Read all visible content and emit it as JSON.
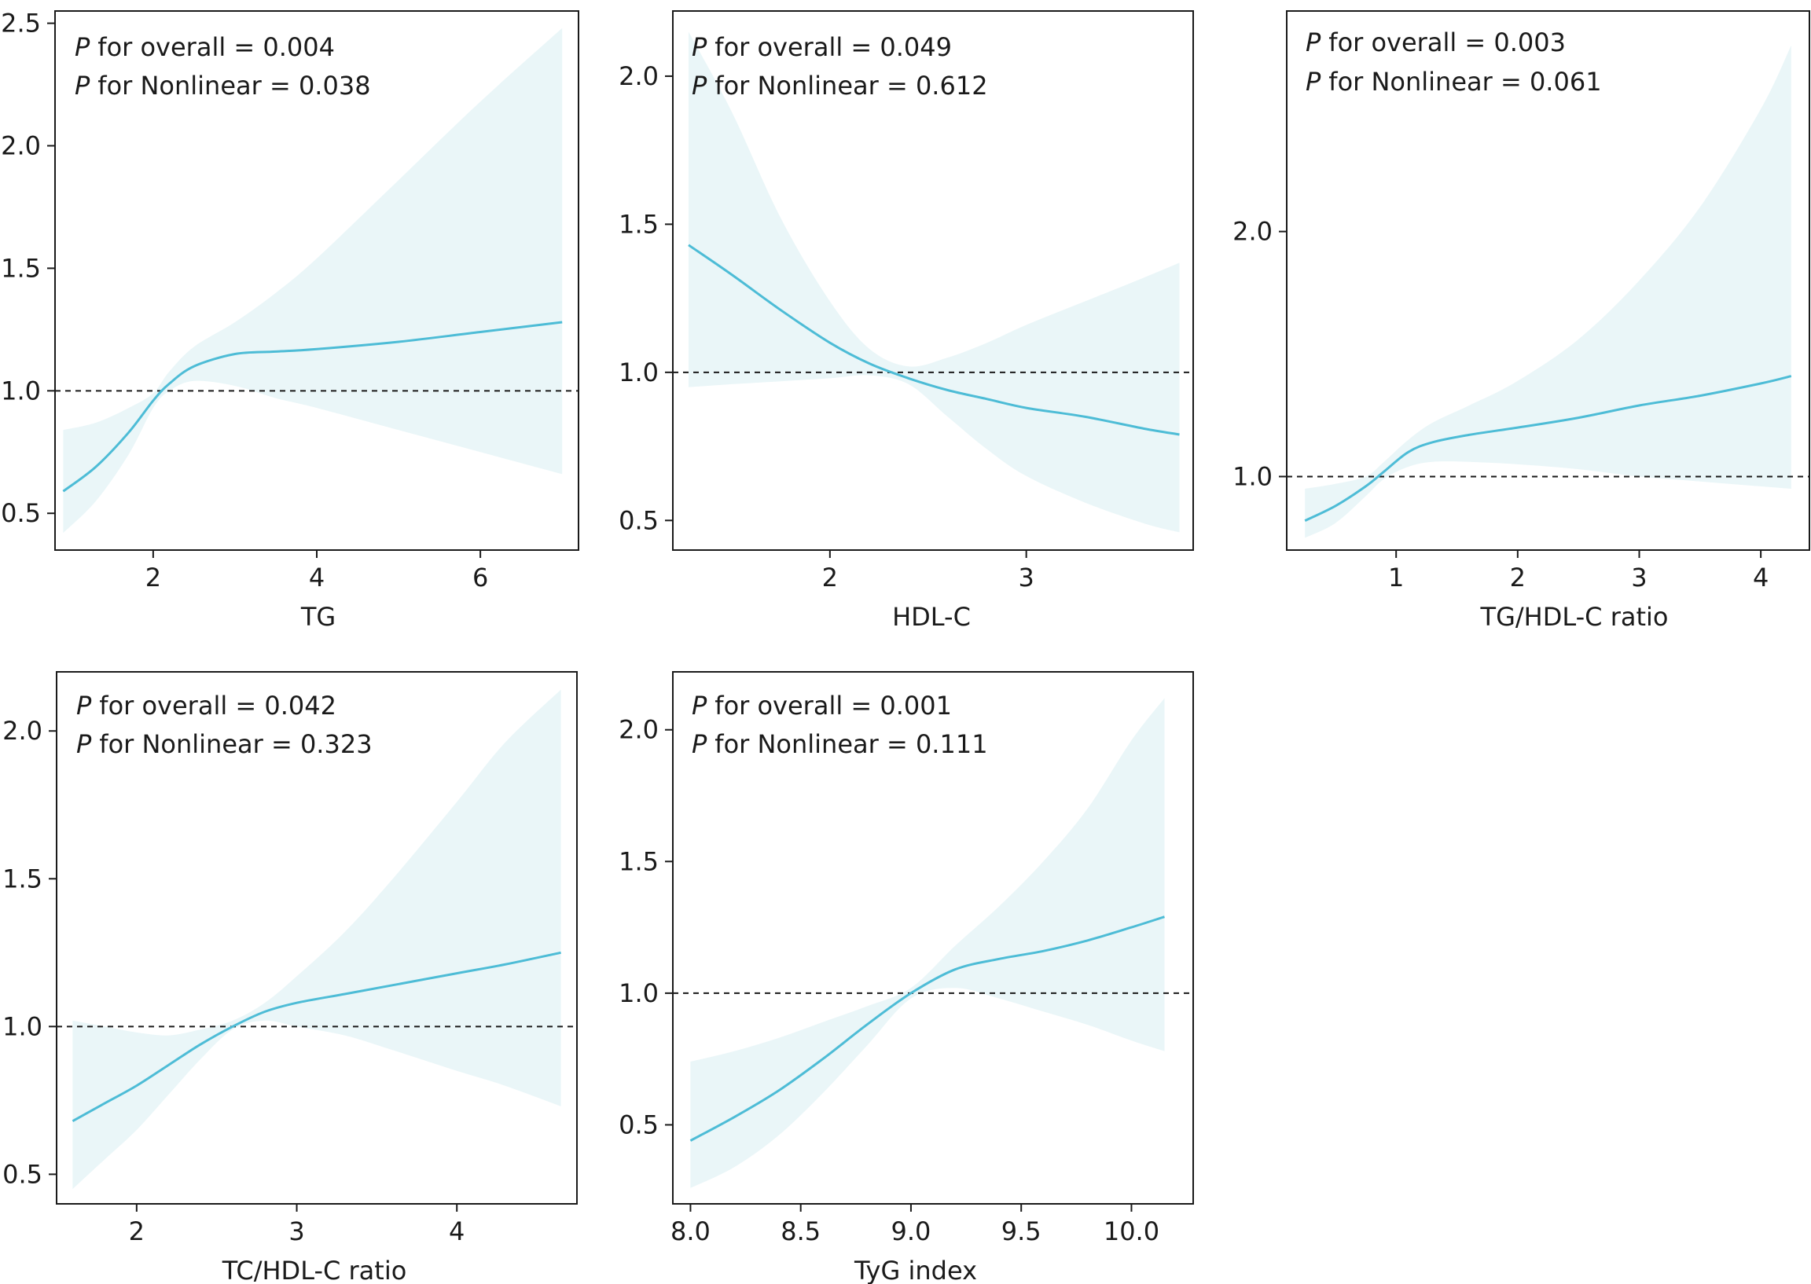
{
  "colors": {
    "line": "#4dbcd6",
    "band": "#eaf6f8",
    "axis": "#1a1a1a",
    "reference": "#1a1a1a"
  },
  "chart_data": [
    {
      "type": "line",
      "xlabel": "TG",
      "ylabel": "",
      "xlim": [
        0.8,
        7.2
      ],
      "ylim": [
        0.35,
        2.55
      ],
      "xticks": [
        2,
        4,
        6
      ],
      "xtick_labels": [
        "2",
        "4",
        "6"
      ],
      "yticks": [
        0.5,
        1.0,
        1.5,
        2.0,
        2.5
      ],
      "ytick_labels": [
        "0.5",
        "1.0",
        "1.5",
        "2.0",
        "2.5"
      ],
      "reference_y": 1.0,
      "annotations": [
        {
          "italic": "P",
          "text": "for overall = 0.004"
        },
        {
          "italic": "P",
          "text": "for Nonlinear = 0.038"
        }
      ],
      "x": [
        0.9,
        1.3,
        1.7,
        2.0,
        2.2,
        2.5,
        3.0,
        3.5,
        4.0,
        5.0,
        6.0,
        7.0
      ],
      "y": [
        0.59,
        0.69,
        0.83,
        0.96,
        1.03,
        1.1,
        1.15,
        1.16,
        1.17,
        1.2,
        1.24,
        1.28
      ],
      "lower": [
        0.42,
        0.55,
        0.74,
        0.93,
        1.0,
        1.04,
        1.02,
        0.97,
        0.93,
        0.84,
        0.75,
        0.66
      ],
      "upper": [
        0.84,
        0.87,
        0.93,
        0.99,
        1.08,
        1.18,
        1.28,
        1.4,
        1.54,
        1.86,
        2.18,
        2.48
      ]
    },
    {
      "type": "line",
      "xlabel": "HDL-C",
      "ylabel": "",
      "xlim": [
        1.2,
        3.85
      ],
      "ylim": [
        0.4,
        2.22
      ],
      "xticks": [
        2,
        3
      ],
      "xtick_labels": [
        "2",
        "3"
      ],
      "yticks": [
        0.5,
        1.0,
        1.5,
        2.0
      ],
      "ytick_labels": [
        "0.5",
        "1.0",
        "1.5",
        "2.0"
      ],
      "reference_y": 1.0,
      "annotations": [
        {
          "italic": "P",
          "text": "for overall = 0.049"
        },
        {
          "italic": "P",
          "text": "for Nonlinear = 0.612"
        }
      ],
      "x": [
        1.28,
        1.5,
        1.75,
        2.0,
        2.2,
        2.4,
        2.6,
        2.8,
        3.0,
        3.3,
        3.6,
        3.78
      ],
      "y": [
        1.43,
        1.33,
        1.21,
        1.1,
        1.03,
        0.98,
        0.94,
        0.91,
        0.88,
        0.85,
        0.81,
        0.79
      ],
      "lower": [
        0.95,
        0.96,
        0.97,
        0.98,
        0.99,
        0.96,
        0.85,
        0.74,
        0.65,
        0.56,
        0.49,
        0.46
      ],
      "upper": [
        2.15,
        1.88,
        1.52,
        1.24,
        1.08,
        1.02,
        1.05,
        1.1,
        1.16,
        1.24,
        1.32,
        1.37
      ]
    },
    {
      "type": "line",
      "xlabel": "TG/HDL-C ratio",
      "ylabel": "",
      "xlim": [
        0.1,
        4.4
      ],
      "ylim": [
        0.7,
        2.9
      ],
      "xticks": [
        1,
        2,
        3,
        4
      ],
      "xtick_labels": [
        "1",
        "2",
        "3",
        "4"
      ],
      "yticks": [
        1.0,
        2.0
      ],
      "ytick_labels": [
        "1.0",
        "2.0"
      ],
      "reference_y": 1.0,
      "annotations": [
        {
          "italic": "P",
          "text": "for overall = 0.003"
        },
        {
          "italic": "P",
          "text": "for Nonlinear = 0.061"
        }
      ],
      "x": [
        0.25,
        0.5,
        0.75,
        0.9,
        1.1,
        1.3,
        1.6,
        2.0,
        2.5,
        3.0,
        3.5,
        4.0,
        4.25
      ],
      "y": [
        0.82,
        0.88,
        0.96,
        1.02,
        1.1,
        1.14,
        1.17,
        1.2,
        1.24,
        1.29,
        1.33,
        1.38,
        1.41
      ],
      "lower": [
        0.75,
        0.81,
        0.92,
        0.99,
        1.04,
        1.06,
        1.06,
        1.05,
        1.03,
        1.0,
        0.98,
        0.96,
        0.95
      ],
      "upper": [
        0.95,
        0.97,
        1.0,
        1.06,
        1.15,
        1.22,
        1.29,
        1.39,
        1.56,
        1.8,
        2.1,
        2.5,
        2.76
      ]
    },
    {
      "type": "line",
      "xlabel": "TC/HDL-C ratio",
      "ylabel": "",
      "xlim": [
        1.5,
        4.75
      ],
      "ylim": [
        0.4,
        2.2
      ],
      "xticks": [
        2,
        3,
        4
      ],
      "xtick_labels": [
        "2",
        "3",
        "4"
      ],
      "yticks": [
        0.5,
        1.0,
        1.5,
        2.0
      ],
      "ytick_labels": [
        "0.5",
        "1.0",
        "1.5",
        "2.0"
      ],
      "reference_y": 1.0,
      "annotations": [
        {
          "italic": "P",
          "text": "for overall = 0.042"
        },
        {
          "italic": "P",
          "text": "for Nonlinear = 0.323"
        }
      ],
      "x": [
        1.6,
        1.8,
        2.0,
        2.2,
        2.4,
        2.6,
        2.8,
        3.0,
        3.3,
        3.6,
        4.0,
        4.3,
        4.65
      ],
      "y": [
        0.68,
        0.74,
        0.8,
        0.87,
        0.94,
        1.0,
        1.05,
        1.08,
        1.11,
        1.14,
        1.18,
        1.21,
        1.25
      ],
      "lower": [
        0.45,
        0.55,
        0.65,
        0.77,
        0.89,
        0.99,
        1.02,
        1.0,
        0.97,
        0.92,
        0.85,
        0.8,
        0.73
      ],
      "upper": [
        1.02,
        1.0,
        0.98,
        0.97,
        0.99,
        1.02,
        1.08,
        1.17,
        1.32,
        1.5,
        1.76,
        1.96,
        2.14
      ]
    },
    {
      "type": "line",
      "xlabel": "TyG index",
      "ylabel": "",
      "xlim": [
        7.92,
        10.28
      ],
      "ylim": [
        0.2,
        2.22
      ],
      "xticks": [
        8.0,
        8.5,
        9.0,
        9.5,
        10.0
      ],
      "xtick_labels": [
        "8.0",
        "8.5",
        "9.0",
        "9.5",
        "10.0"
      ],
      "yticks": [
        0.5,
        1.0,
        1.5,
        2.0
      ],
      "ytick_labels": [
        "0.5",
        "1.0",
        "1.5",
        "2.0"
      ],
      "reference_y": 1.0,
      "annotations": [
        {
          "italic": "P",
          "text": "for overall = 0.001"
        },
        {
          "italic": "P",
          "text": "for Nonlinear = 0.111"
        }
      ],
      "x": [
        8.0,
        8.2,
        8.4,
        8.6,
        8.8,
        9.0,
        9.2,
        9.4,
        9.6,
        9.8,
        10.0,
        10.15
      ],
      "y": [
        0.44,
        0.53,
        0.63,
        0.75,
        0.88,
        1.0,
        1.09,
        1.13,
        1.16,
        1.2,
        1.25,
        1.29
      ],
      "lower": [
        0.26,
        0.34,
        0.46,
        0.62,
        0.8,
        0.98,
        1.02,
        0.98,
        0.93,
        0.88,
        0.82,
        0.78
      ],
      "upper": [
        0.74,
        0.78,
        0.83,
        0.89,
        0.95,
        1.02,
        1.18,
        1.33,
        1.5,
        1.7,
        1.96,
        2.12
      ]
    }
  ]
}
